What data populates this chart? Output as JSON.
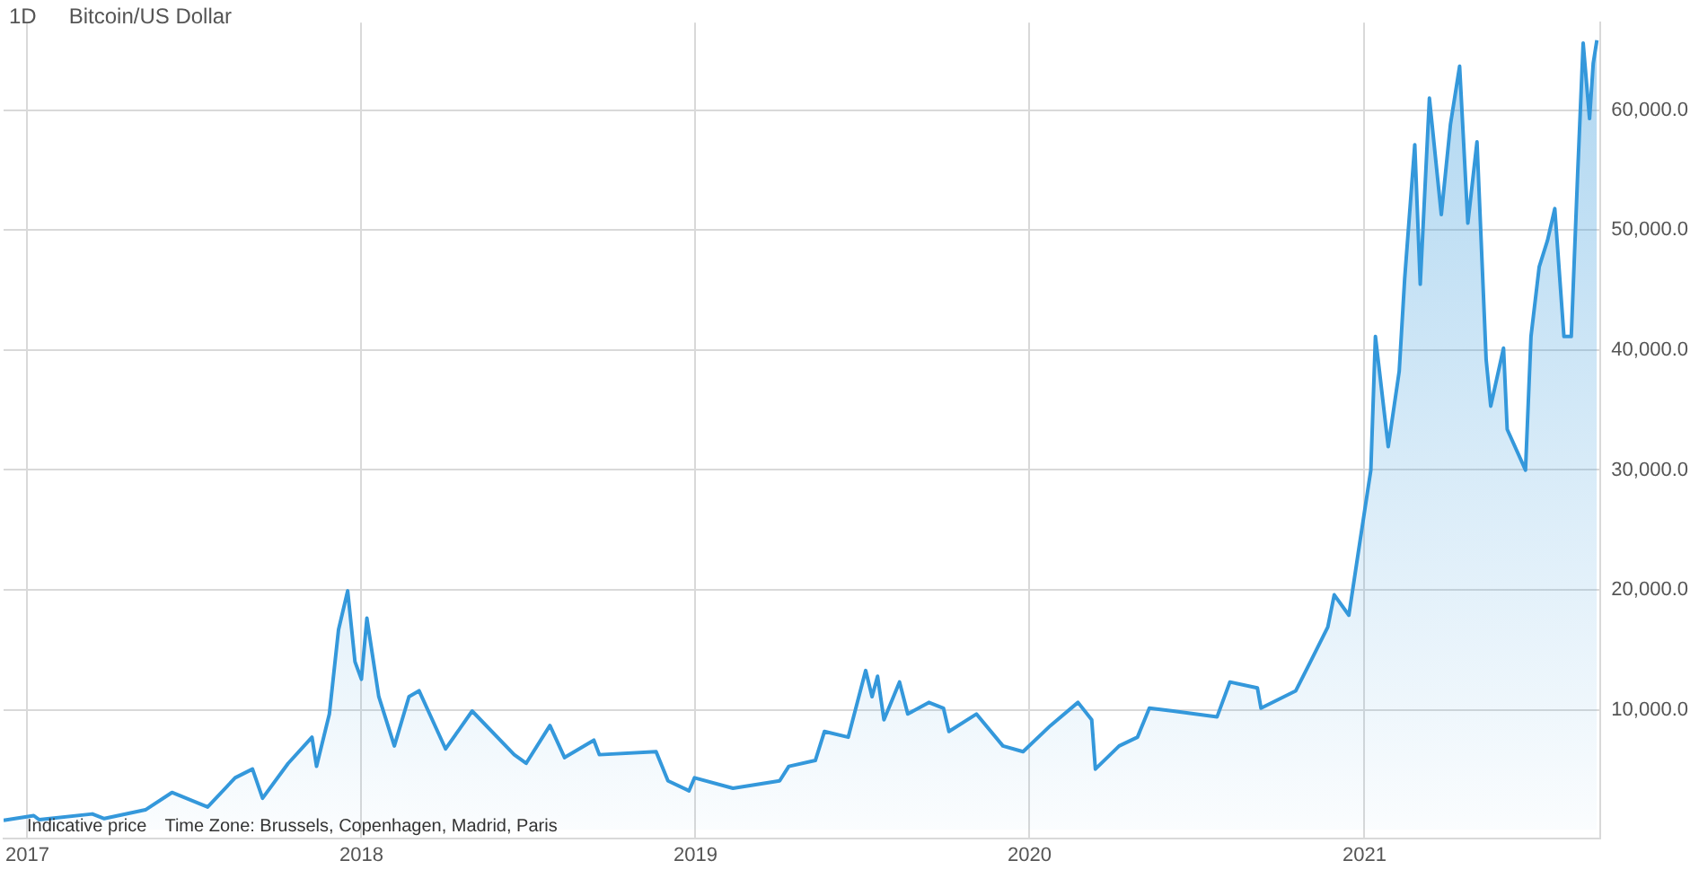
{
  "chart_data": {
    "type": "area",
    "title": "Bitcoin/US Dollar",
    "subtitle": "1D",
    "annotations": [
      "Indicative price",
      "Time Zone: Brussels, Copenhagen, Madrid, Paris"
    ],
    "x": [
      "2016-12-06",
      "2017-01-08",
      "2017-01-14",
      "2017-03-13",
      "2017-03-26",
      "2017-05-10",
      "2017-06-08",
      "2017-07-17",
      "2017-08-16",
      "2017-09-04",
      "2017-09-15",
      "2017-10-13",
      "2017-11-08",
      "2017-11-13",
      "2017-11-27",
      "2017-12-07",
      "2017-12-17",
      "2017-12-25",
      "2018-01-01",
      "2018-01-07",
      "2018-01-20",
      "2018-02-06",
      "2018-02-22",
      "2018-03-05",
      "2018-04-03",
      "2018-05-02",
      "2018-06-17",
      "2018-06-30",
      "2018-07-26",
      "2018-08-11",
      "2018-09-12",
      "2018-09-18",
      "2018-11-19",
      "2018-12-02",
      "2018-12-25",
      "2018-12-31",
      "2019-02-11",
      "2019-04-03",
      "2019-04-13",
      "2019-05-12",
      "2019-05-22",
      "2019-06-17",
      "2019-07-06",
      "2019-07-13",
      "2019-07-19",
      "2019-07-26",
      "2019-08-12",
      "2019-08-21",
      "2019-09-13",
      "2019-09-29",
      "2019-10-05",
      "2019-11-04",
      "2019-12-03",
      "2019-12-25",
      "2020-01-24",
      "2020-02-23",
      "2020-03-09",
      "2020-03-13",
      "2020-04-08",
      "2020-04-28",
      "2020-05-11",
      "2020-06-06",
      "2020-07-24",
      "2020-08-07",
      "2020-09-06",
      "2020-09-10",
      "2020-10-18",
      "2020-11-03",
      "2020-11-22",
      "2020-11-29",
      "2020-12-15",
      "2020-12-25",
      "2021-01-08",
      "2021-01-13",
      "2021-01-27",
      "2021-02-08",
      "2021-02-14",
      "2021-02-25",
      "2021-03-03",
      "2021-03-13",
      "2021-03-26",
      "2021-04-05",
      "2021-04-15",
      "2021-04-24",
      "2021-05-04",
      "2021-05-14",
      "2021-05-19",
      "2021-06-02",
      "2021-06-06",
      "2021-06-26",
      "2021-07-02",
      "2021-07-11",
      "2021-07-20",
      "2021-07-28",
      "2021-08-07",
      "2021-08-15",
      "2021-08-22",
      "2021-08-28",
      "2021-09-04",
      "2021-09-08",
      "2021-09-12"
    ],
    "series": [
      {
        "color": "#3498db",
        "values": [
          785,
          1180,
          840,
          1320,
          930,
          1660,
          3110,
          1900,
          4330,
          5060,
          2630,
          5540,
          7720,
          5290,
          9650,
          16680,
          19920,
          14010,
          12550,
          17640,
          11100,
          6990,
          11100,
          11590,
          6740,
          9900,
          6260,
          5540,
          8690,
          6020,
          7470,
          6260,
          6510,
          4080,
          3250,
          4330,
          3460,
          4080,
          5290,
          5780,
          8200,
          7720,
          13280,
          11100,
          12800,
          9170,
          12320,
          9650,
          10620,
          10140,
          8200,
          9650,
          6990,
          6510,
          8690,
          10620,
          9170,
          5060,
          6990,
          7720,
          10140,
          9900,
          9420,
          12320,
          11830,
          10140,
          11590,
          14010,
          16910,
          19590,
          17890,
          22970,
          29990,
          41130,
          31940,
          38230,
          45970,
          57120,
          45490,
          61000,
          51300,
          58820,
          63660,
          50580,
          57360,
          39200,
          35320,
          40160,
          33390,
          29990,
          41130,
          46950,
          49130,
          51790,
          41130,
          41130,
          54690,
          65590,
          59300,
          63900,
          65830
        ]
      }
    ],
    "xlim": [
      "2016-12-06",
      "2021-09-16"
    ],
    "xticks": [
      {
        "value": "2017-01-01",
        "label": "2017"
      },
      {
        "value": "2018-01-01",
        "label": "2018"
      },
      {
        "value": "2019-01-01",
        "label": "2019"
      },
      {
        "value": "2020-01-01",
        "label": "2020"
      },
      {
        "value": "2021-01-01",
        "label": "2021"
      }
    ],
    "ylim": [
      -700,
      67300
    ],
    "yticks": [
      {
        "value": 10000,
        "label": "10,000.0"
      },
      {
        "value": 20000,
        "label": "20,000.0"
      },
      {
        "value": 30000,
        "label": "30,000.0"
      },
      {
        "value": 40000,
        "label": "40,000.0"
      },
      {
        "value": 50000,
        "label": "50,000.0"
      },
      {
        "value": 60000,
        "label": "60,000.0"
      }
    ],
    "grid": true,
    "legend": false,
    "marker": "none",
    "line_style": "solid"
  }
}
